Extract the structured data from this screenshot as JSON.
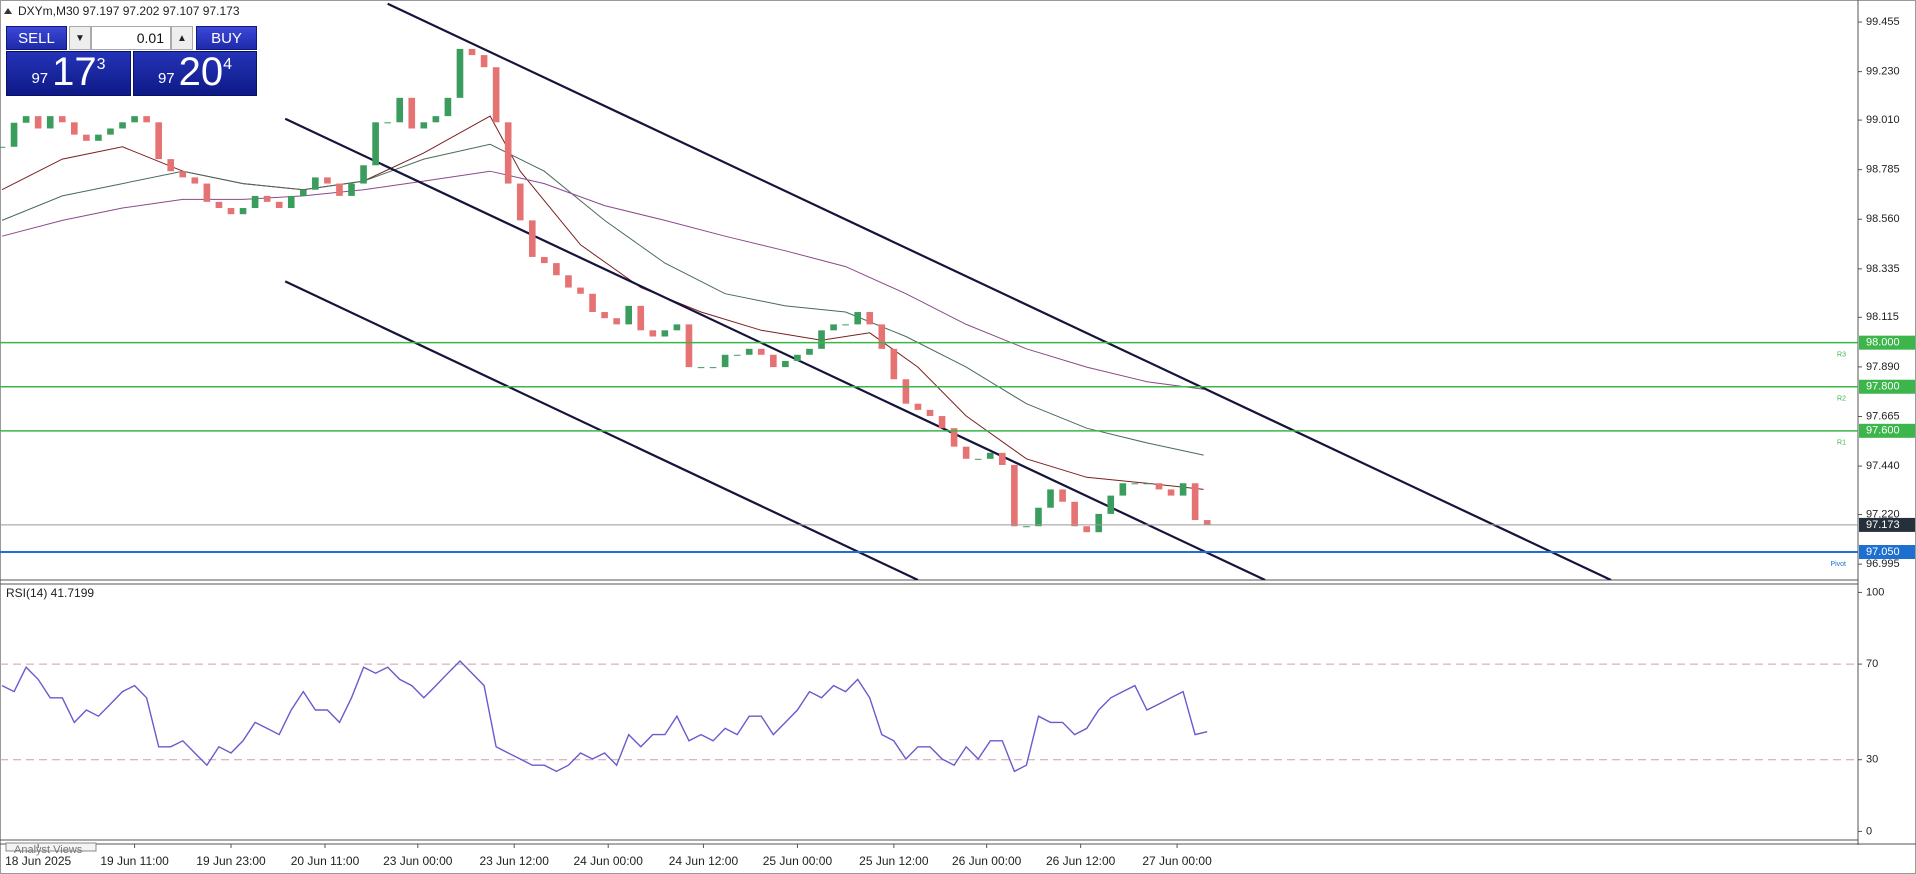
{
  "header": {
    "symbol_line": "DXYm,M30  97.197 97.202 97.107 97.173"
  },
  "trade_panel": {
    "sell": "SELL",
    "buy": "BUY",
    "volume": "0.01",
    "sell_price": {
      "big": "97",
      "main": "17",
      "sup": "3"
    },
    "buy_price": {
      "big": "97",
      "main": "20",
      "sup": "4"
    }
  },
  "chart": {
    "type": "candlestick",
    "xlim": [
      0,
      154
    ],
    "ylim": [
      96.923,
      99.555
    ],
    "yticks": [
      99.455,
      {
        "value": 99.23,
        "label": "99.230"
      },
      {
        "value": 99.01,
        "label": "99.010"
      },
      98.785,
      {
        "value": 98.56,
        "label": "98.560"
      },
      98.335,
      98.115,
      {
        "value": 97.89,
        "label": "97.890"
      },
      97.665,
      {
        "value": 97.44,
        "label": "97.440"
      },
      {
        "value": 97.22,
        "label": "97.220"
      },
      96.995
    ],
    "xticks": [
      {
        "value": 3,
        "label": "18 Jun 2025"
      },
      {
        "value": 11,
        "label": "19 Jun 11:00"
      },
      {
        "value": 19,
        "label": "19 Jun 23:00"
      },
      {
        "value": 26.8,
        "label": "20 Jun 11:00"
      },
      {
        "value": 34.5,
        "label": "23 Jun 00:00"
      },
      {
        "value": 42.5,
        "label": "23 Jun 12:00"
      },
      {
        "value": 50.3,
        "label": "24 Jun 00:00"
      },
      {
        "value": 58.2,
        "label": "24 Jun 12:00"
      },
      {
        "value": 66,
        "label": "25 Jun 00:00"
      },
      {
        "value": 74,
        "label": "25 Jun 12:00"
      },
      {
        "value": 81.7,
        "label": "26 Jun 00:00"
      },
      {
        "value": 89.5,
        "label": "26 Jun 12:00"
      },
      {
        "value": 97.5,
        "label": "27 Jun 00:00"
      }
    ],
    "up_color": "#3a9d5d",
    "down_color": "#e57373",
    "closes": [
      98.889,
      98.998,
      99.028,
      98.972,
      99.028,
      99.0,
      98.944,
      98.916,
      98.944,
      98.972,
      99.0,
      99.028,
      99.0,
      98.833,
      98.778,
      98.75,
      98.722,
      98.639,
      98.611,
      98.583,
      98.611,
      98.666,
      98.639,
      98.611,
      98.666,
      98.694,
      98.75,
      98.722,
      98.666,
      98.722,
      98.805,
      99.0,
      99.0,
      99.111,
      98.972,
      99.0,
      99.028,
      99.111,
      99.333,
      99.305,
      99.25,
      99.0,
      98.722,
      98.555,
      98.389,
      98.361,
      98.306,
      98.25,
      98.222,
      98.139,
      98.111,
      98.083,
      98.167,
      98.056,
      98.028,
      98.056,
      98.083,
      97.889,
      97.889,
      97.889,
      97.945,
      97.945,
      97.972,
      97.945,
      97.889,
      97.917,
      97.945,
      97.972,
      98.056,
      98.083,
      98.083,
      98.139,
      98.083,
      97.972,
      97.834,
      97.723,
      97.695,
      97.667,
      97.612,
      97.528,
      97.473,
      97.473,
      97.5,
      97.445,
      97.167,
      97.167,
      97.251,
      97.334,
      97.278,
      97.167,
      97.14,
      97.223,
      97.306,
      97.362,
      97.362,
      97.362,
      97.334,
      97.306,
      97.362,
      97.195,
      97.173
    ],
    "moving_averages": [
      {
        "color": "#7a1f1f",
        "x": [
          0,
          5,
          10,
          15,
          20,
          25,
          30,
          35,
          40.5,
          43,
          48,
          53,
          58,
          63,
          68,
          72,
          76,
          80,
          85,
          90,
          95,
          99.7
        ],
        "values": [
          98.694,
          98.833,
          98.889,
          98.778,
          98.722,
          98.694,
          98.733,
          98.861,
          99.028,
          98.778,
          98.444,
          98.25,
          98.139,
          98.056,
          98.011,
          98.045,
          97.889,
          97.667,
          97.473,
          97.389,
          97.362,
          97.334
        ]
      },
      {
        "color": "#4a6b5a",
        "x": [
          0,
          5,
          10,
          15,
          20,
          25,
          30,
          35,
          40.5,
          45,
          50,
          55,
          60,
          65,
          70,
          75,
          80,
          85,
          90,
          95,
          99.7
        ],
        "values": [
          98.555,
          98.666,
          98.722,
          98.778,
          98.722,
          98.694,
          98.733,
          98.833,
          98.9,
          98.778,
          98.555,
          98.361,
          98.222,
          98.167,
          98.139,
          98.028,
          97.889,
          97.723,
          97.612,
          97.545,
          97.49
        ]
      },
      {
        "color": "#8a4a8a",
        "x": [
          0,
          5,
          10,
          15,
          20,
          25,
          30,
          35,
          40.5,
          45,
          50,
          55,
          60,
          65,
          70,
          75,
          80,
          85,
          90,
          95,
          99.7
        ],
        "values": [
          98.483,
          98.555,
          98.611,
          98.65,
          98.65,
          98.666,
          98.694,
          98.733,
          98.778,
          98.722,
          98.622,
          98.555,
          98.483,
          98.417,
          98.345,
          98.222,
          98.083,
          97.972,
          97.889,
          97.823,
          97.789
        ]
      }
    ],
    "channel_color": "#14143c",
    "channels": [
      {
        "x": [
          32,
          133.5
        ],
        "prices": [
          99.538,
          96.923
        ]
      },
      {
        "x": [
          23.5,
          104.8
        ],
        "prices": [
          99.016,
          96.923
        ]
      },
      {
        "x": [
          23.5,
          76
        ],
        "prices": [
          98.278,
          96.923
        ]
      }
    ],
    "levels": [
      {
        "price": {
          "value": 98,
          "label": "98.000"
        },
        "tag": "R3",
        "color": "#3cb54a"
      },
      {
        "price": {
          "value": 97.8,
          "label": "97.800"
        },
        "tag": "R2",
        "color": "#3cb54a"
      },
      {
        "price": {
          "value": 97.6,
          "label": "97.600"
        },
        "tag": "R1",
        "color": "#3cb54a"
      },
      {
        "price": {
          "value": 97.05,
          "label": "97.050"
        },
        "tag": "Pivot",
        "color": "#1e6fd0"
      }
    ],
    "current_price": 97.173
  },
  "rsi": {
    "title": "RSI(14) 41.7199",
    "color": "#6a5acd",
    "ylim": [
      -3.6,
      103.1
    ],
    "yticks": [
      100,
      70,
      30,
      0
    ],
    "levels": [
      70,
      30
    ],
    "values": [
      61.0,
      58.5,
      68.7,
      63.6,
      55.9,
      55.9,
      45.6,
      50.8,
      48.2,
      53.3,
      58.5,
      61.0,
      55.9,
      35.4,
      35.4,
      37.9,
      32.8,
      27.7,
      35.4,
      32.8,
      37.9,
      45.6,
      43.1,
      40.5,
      50.8,
      58.5,
      50.8,
      50.8,
      45.6,
      55.9,
      68.7,
      66.2,
      68.7,
      63.6,
      61.0,
      55.9,
      61.0,
      66.2,
      71.3,
      66.2,
      61.0,
      35.4,
      32.8,
      30.3,
      27.7,
      27.7,
      25.1,
      27.7,
      32.8,
      30.3,
      32.8,
      27.7,
      40.5,
      35.4,
      40.5,
      40.5,
      48.2,
      37.9,
      40.5,
      37.9,
      43.1,
      40.5,
      48.2,
      48.2,
      40.5,
      45.6,
      50.8,
      58.5,
      55.9,
      61.0,
      58.5,
      63.6,
      55.9,
      40.5,
      37.9,
      30.3,
      35.4,
      35.4,
      30.3,
      27.7,
      35.4,
      30.3,
      37.9,
      37.9,
      25.1,
      27.7,
      48.2,
      45.6,
      45.6,
      40.5,
      43.1,
      50.8,
      55.9,
      58.5,
      61.0,
      50.8,
      53.3,
      55.9,
      58.5,
      40.5,
      41.7
    ]
  },
  "footer": {
    "tab": "Analyst Views"
  }
}
